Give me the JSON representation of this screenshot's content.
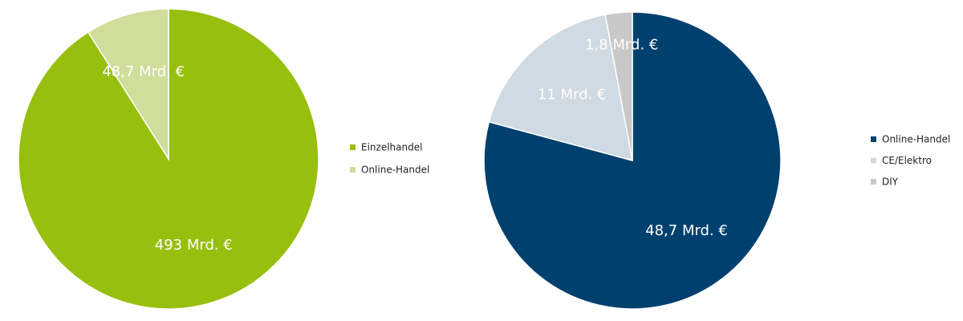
{
  "chart_data": [
    {
      "type": "pie",
      "categories": [
        "Einzelhandel",
        "Online-Handel"
      ],
      "values": [
        493,
        48.7
      ],
      "value_labels": [
        "493 Mrd. €",
        "48,7 Mrd. €"
      ],
      "colors": [
        "#97bf0d",
        "#d0dd9b"
      ]
    },
    {
      "type": "pie",
      "categories": [
        "Online-Handel",
        "CE/Elektro",
        "DIY"
      ],
      "values": [
        48.7,
        11,
        1.8
      ],
      "value_labels": [
        "48,7 Mrd. €",
        "11 Mrd. €",
        "1,8 Mrd. €"
      ],
      "colors": [
        "#00406f",
        "#cfdae3",
        "#c8c8c8"
      ]
    }
  ]
}
